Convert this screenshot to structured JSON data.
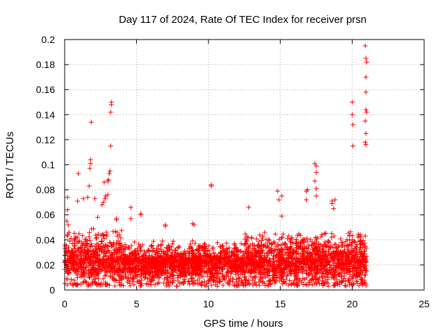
{
  "chart_data": {
    "type": "scatter",
    "title": "Day 117 of 2024, Rate Of TEC Index for receiver prsn",
    "xlabel": "GPS time / hours",
    "ylabel": "ROTI / TECUs",
    "xlim": [
      0,
      25
    ],
    "ylim": [
      0,
      0.2
    ],
    "x_ticks": [
      "0",
      "5",
      "10",
      "15",
      "20",
      "25"
    ],
    "y_ticks": [
      "0",
      "0.02",
      "0.04",
      "0.06",
      "0.08",
      "0.1",
      "0.12",
      "0.14",
      "0.16",
      "0.18",
      "0.2"
    ],
    "grid": true,
    "marker": "+",
    "color": "#ff0000",
    "series": [
      {
        "name": "ROTI",
        "points": [
          [
            0.2,
            0.074
          ],
          [
            0.2,
            0.064
          ],
          [
            0.15,
            0.055
          ],
          [
            0.25,
            0.052
          ],
          [
            0.3,
            0.046
          ],
          [
            0.9,
            0.071
          ],
          [
            0.95,
            0.093
          ],
          [
            1.3,
            0.073
          ],
          [
            1.6,
            0.074
          ],
          [
            1.7,
            0.083
          ],
          [
            1.75,
            0.097
          ],
          [
            1.8,
            0.101
          ],
          [
            1.8,
            0.104
          ],
          [
            1.85,
            0.134
          ],
          [
            2.1,
            0.073
          ],
          [
            2.3,
            0.058
          ],
          [
            2.6,
            0.068
          ],
          [
            2.7,
            0.07
          ],
          [
            2.75,
            0.086
          ],
          [
            2.8,
            0.073
          ],
          [
            2.85,
            0.075
          ],
          [
            3.0,
            0.076
          ],
          [
            3.0,
            0.087
          ],
          [
            3.05,
            0.088
          ],
          [
            3.1,
            0.093
          ],
          [
            3.15,
            0.095
          ],
          [
            3.2,
            0.115
          ],
          [
            3.2,
            0.142
          ],
          [
            3.25,
            0.148
          ],
          [
            3.25,
            0.15
          ],
          [
            3.6,
            0.056
          ],
          [
            3.6,
            0.057
          ],
          [
            4.6,
            0.066
          ],
          [
            4.6,
            0.057
          ],
          [
            5.3,
            0.061
          ],
          [
            5.3,
            0.06
          ],
          [
            7.0,
            0.052
          ],
          [
            7.0,
            0.051
          ],
          [
            8.9,
            0.053
          ],
          [
            9.0,
            0.052
          ],
          [
            10.2,
            0.084
          ],
          [
            10.2,
            0.083
          ],
          [
            12.8,
            0.066
          ],
          [
            14.8,
            0.079
          ],
          [
            14.9,
            0.072
          ],
          [
            15.1,
            0.075
          ],
          [
            15.1,
            0.059
          ],
          [
            16.8,
            0.079
          ],
          [
            16.8,
            0.072
          ],
          [
            16.9,
            0.08
          ],
          [
            17.4,
            0.101
          ],
          [
            17.5,
            0.099
          ],
          [
            17.5,
            0.094
          ],
          [
            17.4,
            0.087
          ],
          [
            17.5,
            0.081
          ],
          [
            17.5,
            0.075
          ],
          [
            18.6,
            0.071
          ],
          [
            18.6,
            0.069
          ],
          [
            18.7,
            0.065
          ],
          [
            18.8,
            0.072
          ],
          [
            20.0,
            0.15
          ],
          [
            20.0,
            0.14
          ],
          [
            20.05,
            0.132
          ],
          [
            20.05,
            0.115
          ],
          [
            20.9,
            0.195
          ],
          [
            20.95,
            0.185
          ],
          [
            21.0,
            0.182
          ],
          [
            20.95,
            0.17
          ],
          [
            20.95,
            0.158
          ],
          [
            20.95,
            0.144
          ],
          [
            21.0,
            0.142
          ],
          [
            20.9,
            0.135
          ],
          [
            20.95,
            0.125
          ],
          [
            20.9,
            0.118
          ],
          [
            20.95,
            0.116
          ]
        ]
      }
    ],
    "dense_band": {
      "description": "continuous dense cloud of observations",
      "x_range": [
        0,
        21
      ],
      "y_floor": 0.003,
      "typical_low": 0.012,
      "typical_high": 0.04,
      "count": 3600
    }
  }
}
